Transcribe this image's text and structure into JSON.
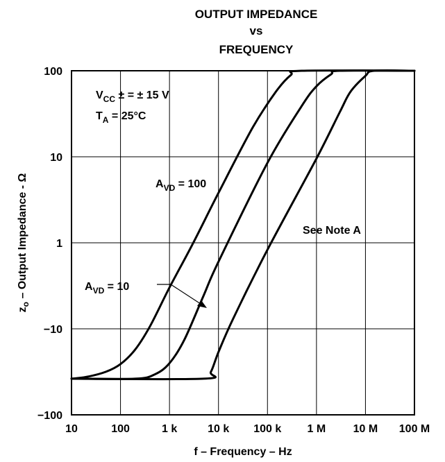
{
  "chart_data": {
    "type": "line",
    "title_lines": [
      "OUTPUT IMPEDANCE",
      "vs",
      "FREQUENCY"
    ],
    "xlabel": "f – Frequency – Hz",
    "ylabel": "z",
    "ylabel_sub": "o",
    "ylabel_rest": " – Output Impedance - Ω",
    "x_scale": "log",
    "x_range": [
      10,
      100000000
    ],
    "x_ticks": [
      10,
      100,
      1000,
      10000,
      100000,
      1000000,
      10000000,
      100000000
    ],
    "x_tick_labels": [
      "10",
      "100",
      "1 k",
      "10 k",
      "100 k",
      "1 M",
      "10 M",
      "100 M"
    ],
    "y_ticks": [
      0,
      1,
      2,
      3,
      4
    ],
    "y_tick_labels": [
      "−100",
      "−10",
      "1",
      "10",
      "100"
    ],
    "grid": true,
    "conditions": {
      "vcc": {
        "main": "V",
        "sub": "CC",
        "rest": " ± = ± 15 V"
      },
      "ta": {
        "main": "T",
        "sub": "A",
        "rest": " = 25°C"
      }
    },
    "series": [
      {
        "name": "AVD = 100",
        "points": [
          [
            10,
            0.42
          ],
          [
            20,
            0.44
          ],
          [
            50,
            0.5
          ],
          [
            100,
            0.59
          ],
          [
            200,
            0.76
          ],
          [
            400,
            1.03
          ],
          [
            1000,
            1.48
          ],
          [
            3000,
            1.99
          ],
          [
            10000,
            2.58
          ],
          [
            50000,
            3.34
          ],
          [
            150000,
            3.76
          ],
          [
            300000,
            3.95
          ],
          [
            500000,
            4.0
          ],
          [
            100000000,
            4.0
          ]
        ]
      },
      {
        "name": "AVD = 10",
        "points": [
          [
            10,
            0.42
          ],
          [
            200,
            0.42
          ],
          [
            500,
            0.47
          ],
          [
            1000,
            0.6
          ],
          [
            2000,
            0.87
          ],
          [
            5000,
            1.39
          ],
          [
            10000,
            1.78
          ],
          [
            100000,
            2.93
          ],
          [
            500000,
            3.59
          ],
          [
            1000000,
            3.82
          ],
          [
            2000000,
            3.96
          ],
          [
            3000000,
            4.0
          ],
          [
            100000000,
            4.0
          ]
        ]
      },
      {
        "name": "See Note A",
        "points": [
          [
            10,
            0.42
          ],
          [
            5000,
            0.42
          ],
          [
            7000,
            0.5
          ],
          [
            10000,
            0.73
          ],
          [
            20000,
            1.12
          ],
          [
            100000,
            1.92
          ],
          [
            1000000,
            2.98
          ],
          [
            3000000,
            3.52
          ],
          [
            5000000,
            3.76
          ],
          [
            10000000,
            3.94
          ],
          [
            15000000,
            4.0
          ],
          [
            100000000,
            4.0
          ]
        ]
      }
    ],
    "annotations": {
      "avd100": {
        "main": "A",
        "sub": "VD",
        "rest": " = 100"
      },
      "avd10": {
        "main": "A",
        "sub": "VD",
        "rest": " = 10"
      },
      "note": "See Note A"
    }
  }
}
